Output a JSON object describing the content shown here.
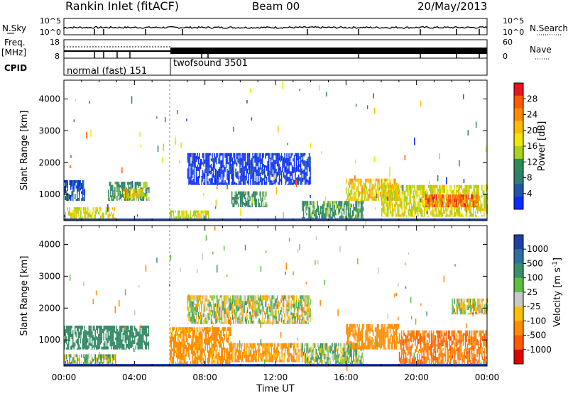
{
  "header": {
    "station": "Rankin Inlet (fitACF)",
    "beam": "Beam 00",
    "date": "20/May/2013"
  },
  "top_panels": {
    "nsky_label": "N.Sky",
    "nsky_ticks": [
      "10^5",
      "10^0"
    ],
    "nsearch_label": "N.Search",
    "nsearch_ticks": [
      "10^5",
      "10^0"
    ],
    "freq_label": "Freq.",
    "freq_unit": "[MHz]",
    "freq_ticks": [
      "18",
      "8"
    ],
    "nave_label": "Nave",
    "nave_ticks": [
      "60",
      "0"
    ],
    "cpid_label": "CPID",
    "cpid_modes": [
      {
        "name": "normal (fast) 151",
        "start_hour": 0,
        "end_hour": 6
      },
      {
        "name": "twofsound 3501",
        "start_hour": 6,
        "end_hour": 24
      }
    ]
  },
  "colorbars": {
    "power": {
      "label": "Power [dB]",
      "ticks": [
        "28",
        "24",
        "20",
        "16",
        "12",
        "8",
        "4"
      ],
      "colors": [
        "#e8141e",
        "#ff5a00",
        "#ff8a00",
        "#ffbb00",
        "#f2e600",
        "#a8d21e",
        "#2e8b57",
        "#2f7f6f",
        "#1f57a8",
        "#0a2bff"
      ]
    },
    "velocity": {
      "label": "Velocity [m s^-1]",
      "ticks": [
        "1000",
        "500",
        "100",
        "25",
        "-25",
        "-100",
        "-500",
        "-1000"
      ],
      "colors": [
        "#1e3fa8",
        "#2e6fa0",
        "#3a8f6a",
        "#5cc040",
        "#c8c8c8",
        "#ffbf00",
        "#ff8c00",
        "#ff5a00",
        "#e00000"
      ]
    }
  },
  "chart_data": [
    {
      "type": "heatmap",
      "name": "power",
      "ylabel": "Slant Range [km]",
      "xlabel": "",
      "x_ticks": [
        "00:00",
        "04:00",
        "08:00",
        "12:00",
        "16:00",
        "20:00",
        "00:00"
      ],
      "xlim_hours": [
        0,
        24
      ],
      "y_ticks": [
        1000,
        2000,
        3000,
        4000
      ],
      "ylim": [
        180,
        4590
      ],
      "regions": [
        {
          "t": [
            0,
            1.2
          ],
          "r": [
            800,
            1450
          ],
          "value": 8
        },
        {
          "t": [
            0,
            2.9
          ],
          "r": [
            180,
            600
          ],
          "value": 20
        },
        {
          "t": [
            2.5,
            4.8
          ],
          "r": [
            800,
            1400
          ],
          "value": 14
        },
        {
          "t": [
            3.4,
            4.6
          ],
          "r": [
            880,
            1180
          ],
          "value": 22
        },
        {
          "t": [
            6.0,
            8.2
          ],
          "r": [
            180,
            500
          ],
          "value": 20
        },
        {
          "t": [
            7.0,
            14.0
          ],
          "r": [
            1300,
            2300
          ],
          "value": 6
        },
        {
          "t": [
            9.5,
            11.5
          ],
          "r": [
            600,
            1100
          ],
          "value": 14
        },
        {
          "t": [
            13.5,
            17.0
          ],
          "r": [
            180,
            800
          ],
          "value": 14
        },
        {
          "t": [
            16.0,
            19.0
          ],
          "r": [
            800,
            1500
          ],
          "value": 22
        },
        {
          "t": [
            18.0,
            24.0
          ],
          "r": [
            300,
            1300
          ],
          "value": 20
        },
        {
          "t": [
            20.5,
            23.5
          ],
          "r": [
            600,
            1000
          ],
          "value": 28
        }
      ]
    },
    {
      "type": "heatmap",
      "name": "velocity",
      "ylabel": "Slant Range [km]",
      "xlabel": "Time UT",
      "x_ticks": [
        "00:00",
        "04:00",
        "08:00",
        "12:00",
        "16:00",
        "20:00",
        "00:00"
      ],
      "xlim_hours": [
        0,
        24
      ],
      "y_ticks": [
        1000,
        2000,
        3000,
        4000
      ],
      "ylim": [
        180,
        4590
      ],
      "regions": [
        {
          "t": [
            0,
            4.8
          ],
          "r": [
            700,
            1450
          ],
          "value": 300
        },
        {
          "t": [
            0,
            2.9
          ],
          "r": [
            180,
            550
          ],
          "value": 60
        },
        {
          "t": [
            6.0,
            9.5
          ],
          "r": [
            180,
            1400
          ],
          "value": -200
        },
        {
          "t": [
            7.0,
            14.0
          ],
          "r": [
            1500,
            2400
          ],
          "value": 0
        },
        {
          "t": [
            9.5,
            13.5
          ],
          "r": [
            300,
            900
          ],
          "value": -150
        },
        {
          "t": [
            13.5,
            17.0
          ],
          "r": [
            180,
            900
          ],
          "value": 50
        },
        {
          "t": [
            16.0,
            19.0
          ],
          "r": [
            700,
            1500
          ],
          "value": -300
        },
        {
          "t": [
            19.0,
            24.0
          ],
          "r": [
            180,
            1300
          ],
          "value": -500
        },
        {
          "t": [
            22.0,
            24.0
          ],
          "r": [
            1800,
            2300
          ],
          "value": 0
        }
      ]
    }
  ]
}
